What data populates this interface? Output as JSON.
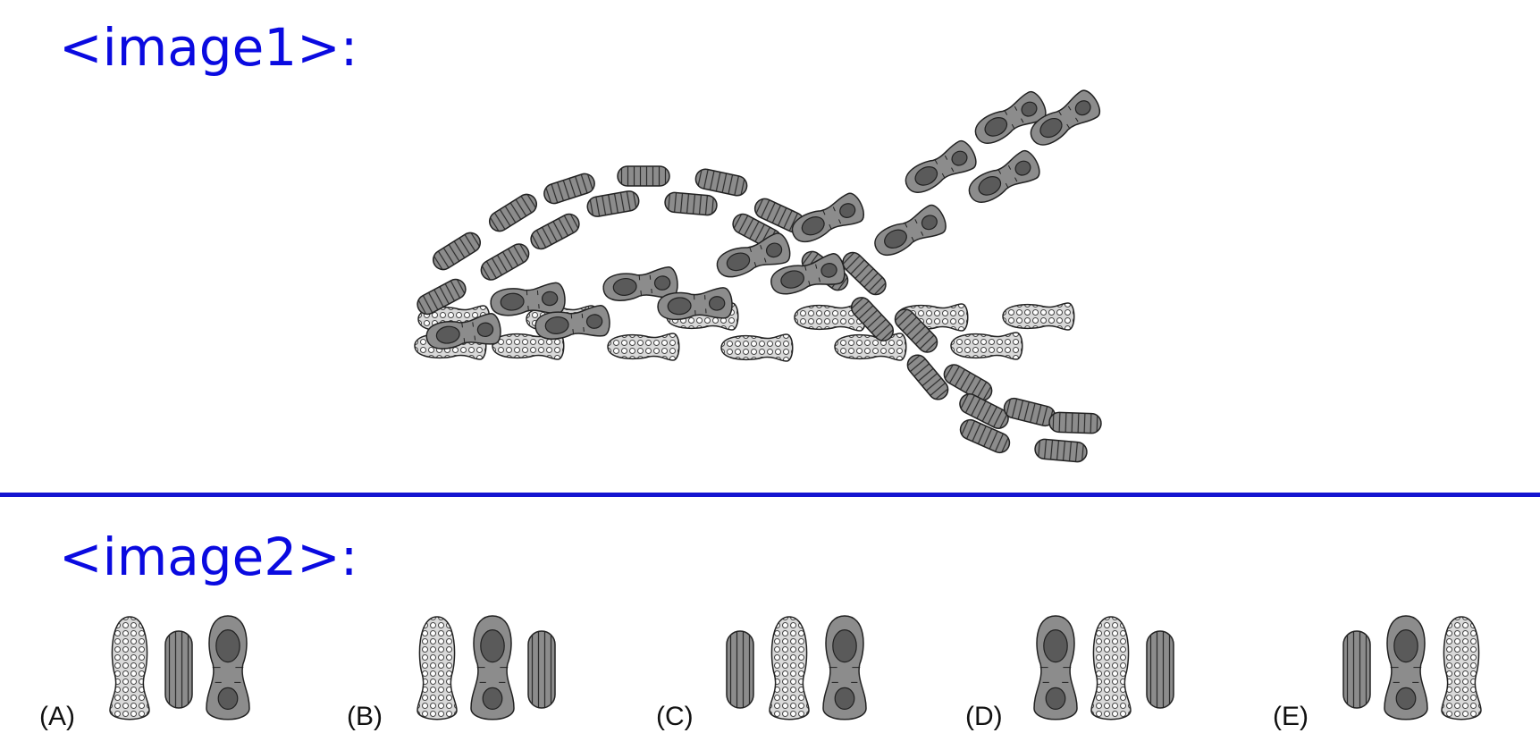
{
  "labels": {
    "image1": "<image1>:",
    "image2": "<image2>:"
  },
  "colors": {
    "label_blue": "#0a0ae0",
    "divider_blue": "#1414d0",
    "print_fill": "#8c8c8c",
    "print_dark": "#5a5a5a",
    "dotted_fill": "#d9d9d9"
  },
  "options": [
    {
      "letter": "(A)",
      "prints": [
        "dotted-sole",
        "striped-sole",
        "heeled-sole"
      ]
    },
    {
      "letter": "(B)",
      "prints": [
        "dotted-sole",
        "heeled-sole",
        "striped-sole"
      ]
    },
    {
      "letter": "(C)",
      "prints": [
        "striped-sole",
        "dotted-sole",
        "heeled-sole"
      ]
    },
    {
      "letter": "(D)",
      "prints": [
        "heeled-sole",
        "dotted-sole",
        "striped-sole"
      ]
    },
    {
      "letter": "(E)",
      "prints": [
        "striped-sole",
        "heeled-sole",
        "dotted-sole"
      ]
    }
  ]
}
